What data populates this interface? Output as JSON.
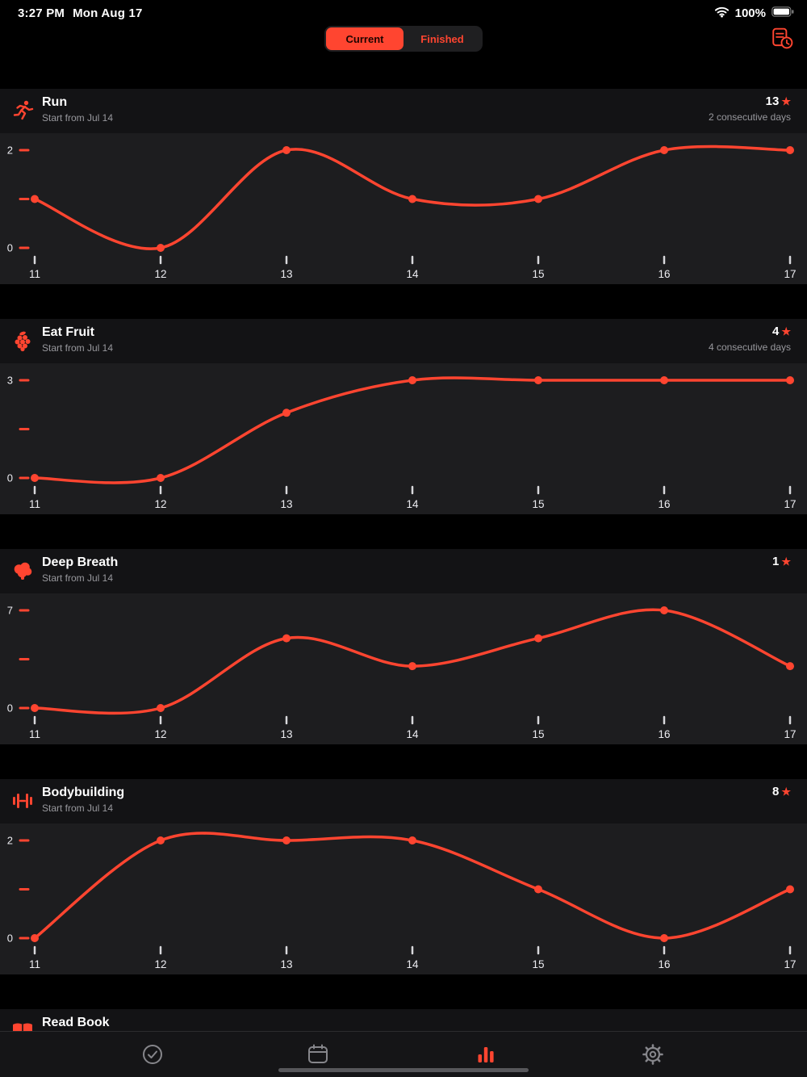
{
  "accent": "#ff4530",
  "icons": {
    "star": "★"
  },
  "status_bar": {
    "time": "3:27 PM",
    "date": "Mon Aug 17",
    "battery_percent": "100%"
  },
  "segmented": {
    "current": "Current",
    "finished": "Finished",
    "selected": "Current"
  },
  "cards": [
    {
      "title": "Run",
      "subtitle": "Start from Jul 14",
      "score": "13",
      "streak": "2 consecutive days",
      "chart": {
        "type": "line",
        "x_labels": [
          "11",
          "12",
          "13",
          "14",
          "15",
          "16",
          "17"
        ],
        "values": [
          1,
          0,
          2,
          1,
          1,
          2,
          2
        ],
        "ymin": 0,
        "ymax": 2,
        "y_label_max": "2",
        "y_label_min": "0"
      }
    },
    {
      "title": "Eat Fruit",
      "subtitle": "Start from Jul 14",
      "score": "4",
      "streak": "4 consecutive days",
      "chart": {
        "type": "line",
        "x_labels": [
          "11",
          "12",
          "13",
          "14",
          "15",
          "16",
          "17"
        ],
        "values": [
          0,
          0,
          2,
          3,
          3,
          3,
          3
        ],
        "ymin": 0,
        "ymax": 3,
        "y_label_max": "3",
        "y_label_min": "0"
      }
    },
    {
      "title": "Deep Breath",
      "subtitle": "Start from Jul 14",
      "score": "1",
      "streak": "",
      "chart": {
        "type": "line",
        "x_labels": [
          "11",
          "12",
          "13",
          "14",
          "15",
          "16",
          "17"
        ],
        "values": [
          0,
          0,
          5,
          3,
          5,
          7,
          3
        ],
        "ymin": 0,
        "ymax": 7,
        "y_label_max": "7",
        "y_label_min": "0"
      }
    },
    {
      "title": "Bodybuilding",
      "subtitle": "Start from Jul 14",
      "score": "8",
      "streak": "",
      "chart": {
        "type": "line",
        "x_labels": [
          "11",
          "12",
          "13",
          "14",
          "15",
          "16",
          "17"
        ],
        "values": [
          0,
          2,
          2,
          2,
          1,
          0,
          1
        ],
        "ymin": 0,
        "ymax": 2,
        "y_label_max": "2",
        "y_label_min": "0"
      }
    },
    {
      "title": "Read Book",
      "subtitle": "",
      "score": "",
      "streak": ""
    }
  ],
  "tab_bar": {
    "items": [
      {
        "icon": "check-circle-icon"
      },
      {
        "icon": "calendar-icon"
      },
      {
        "icon": "statistics-icon"
      },
      {
        "icon": "settings-gear-icon"
      }
    ],
    "selected": "statistics"
  }
}
